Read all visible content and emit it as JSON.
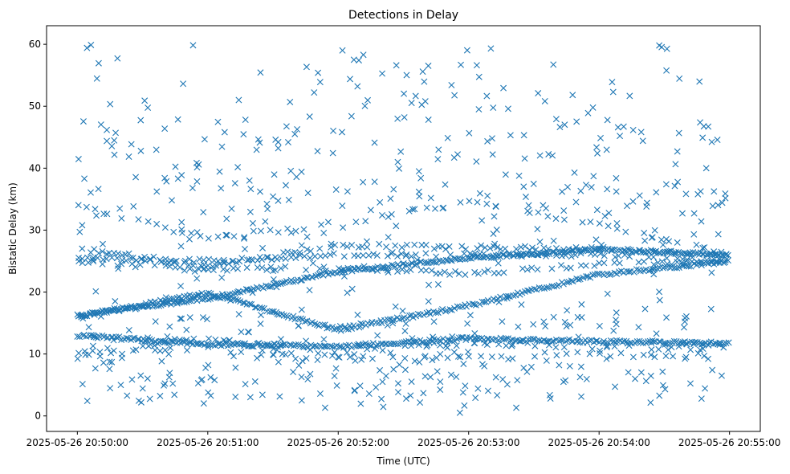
{
  "chart_data": {
    "type": "scatter",
    "title": "Detections in Delay",
    "xlabel": "Time (UTC)",
    "ylabel": "Bistatic Delay (km)",
    "marker": "x",
    "color": "#1f77b4",
    "grid": false,
    "legend": "none",
    "x_axis": {
      "type": "time",
      "start": "2025-05-26 20:50:00",
      "end": "2025-05-26 20:55:00",
      "ticks": [
        "2025-05-26 20:50:00",
        "2025-05-26 20:51:00",
        "2025-05-26 20:52:00",
        "2025-05-26 20:53:00",
        "2025-05-26 20:54:00",
        "2025-05-26 20:55:00"
      ]
    },
    "ylim": [
      -2.5,
      63
    ],
    "yticks": [
      0,
      10,
      20,
      30,
      40,
      50,
      60
    ],
    "tracks": [
      {
        "x": [
          "2025-05-26 20:50:00",
          "2025-05-26 20:51:00",
          "2025-05-26 20:52:00",
          "2025-05-26 20:53:00",
          "2025-05-26 20:54:00",
          "2025-05-26 20:55:00"
        ],
        "y": [
          16.2,
          19.0,
          23.3,
          25.5,
          26.8,
          26.0
        ]
      },
      {
        "x": [
          "2025-05-26 20:50:00",
          "2025-05-26 20:51:00",
          "2025-05-26 20:52:00",
          "2025-05-26 20:53:00",
          "2025-05-26 20:54:00",
          "2025-05-26 20:55:00"
        ],
        "y": [
          13.0,
          11.6,
          11.2,
          12.5,
          12.0,
          11.7
        ]
      },
      {
        "x": [
          "2025-05-26 20:50:00",
          "2025-05-26 20:51:00",
          "2025-05-26 20:52:00",
          "2025-05-26 20:53:00",
          "2025-05-26 20:54:00",
          "2025-05-26 20:55:00"
        ],
        "y": [
          16.1,
          19.8,
          13.9,
          17.8,
          22.8,
          25.0
        ]
      },
      {
        "x": [
          "2025-05-26 20:50:00",
          "2025-05-26 20:51:00",
          "2025-05-26 20:52:00",
          "2025-05-26 20:53:00",
          "2025-05-26 20:54:00",
          "2025-05-26 20:55:00"
        ],
        "y": [
          27.0,
          24.2,
          27.5,
          27.2,
          27.0,
          26.0
        ]
      },
      {
        "x": [
          "2025-05-26 20:50:00",
          "2025-05-26 20:51:00",
          "2025-05-26 20:52:00",
          "2025-05-26 20:53:00",
          "2025-05-26 20:54:00",
          "2025-05-26 20:55:00"
        ],
        "y": [
          25.5,
          25.0,
          26.0,
          26.0,
          26.0,
          25.0
        ]
      },
      {
        "x": [
          "2025-05-26 20:50:00",
          "2025-05-26 20:51:00",
          "2025-05-26 20:52:00",
          "2025-05-26 20:53:00",
          "2025-05-26 20:54:00",
          "2025-05-26 20:55:00"
        ],
        "y": [
          25.0,
          23.5,
          24.0,
          23.0,
          24.5,
          25.0
        ]
      },
      {
        "x": [
          "2025-05-26 20:50:00",
          "2025-05-26 20:51:00",
          "2025-05-26 20:52:00",
          "2025-05-26 20:53:00",
          "2025-05-26 20:54:00",
          "2025-05-26 20:55:00"
        ],
        "y": [
          10.0,
          12.5,
          9.8,
          12.0,
          11.0,
          11.5
        ]
      },
      {
        "x": [
          "2025-05-26 20:50:00",
          "2025-05-26 20:51:00",
          "2025-05-26 20:52:00",
          "2025-05-26 20:53:00",
          "2025-05-26 20:54:00",
          "2025-05-26 20:55:00"
        ],
        "y": [
          34.0,
          28.5,
          31.0,
          34.7,
          31.0,
          26.0
        ]
      },
      {
        "x": [
          "2025-05-26 20:50:00",
          "2025-05-26 20:51:00",
          "2025-05-26 20:52:00",
          "2025-05-26 20:53:00",
          "2025-05-26 20:54:00",
          "2025-05-26 20:55:00"
        ],
        "y": [
          9.5,
          11.0,
          9.0,
          9.5,
          10.0,
          9.5
        ]
      }
    ]
  }
}
